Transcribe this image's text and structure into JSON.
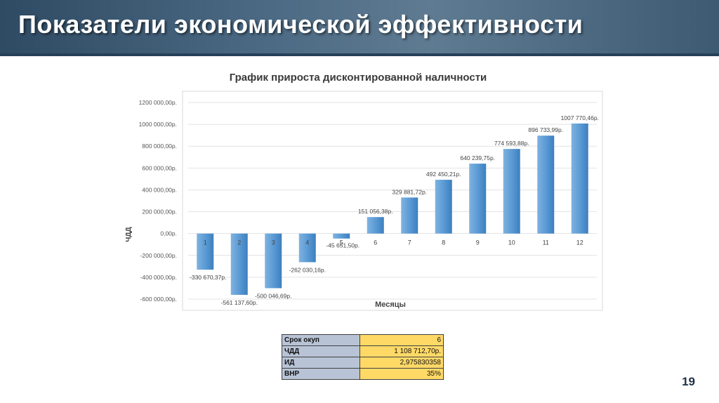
{
  "header": {
    "title": "Показатели экономической эффективности"
  },
  "chart_data": {
    "type": "bar",
    "title": "График прироста дисконтированной наличности",
    "xlabel": "Месяцы",
    "ylabel": "ЧДД",
    "categories": [
      "1",
      "2",
      "3",
      "4",
      "5",
      "6",
      "7",
      "8",
      "9",
      "10",
      "11",
      "12"
    ],
    "values": [
      -330670.37,
      -561137.6,
      -500046.69,
      -262030.16,
      -45651.5,
      151056.38,
      329881.72,
      492450.21,
      640239.75,
      774593.88,
      896733.99,
      1007770.46
    ],
    "value_labels": [
      "-330 670,37р.",
      "-561 137,60р.",
      "-500 046,69р.",
      "-262 030,16р.",
      "-45 651,50р.",
      "151 056,38р.",
      "329 881,72р.",
      "492 450,21р.",
      "640 239,75р.",
      "774 593,88р.",
      "896 733,99р.",
      "1007 770,46р."
    ],
    "yticks": [
      -600000,
      -400000,
      -200000,
      0,
      200000,
      400000,
      600000,
      800000,
      1000000,
      1200000
    ],
    "ytick_labels": [
      "-600 000,00р.",
      "-400 000,00р.",
      "-200 000,00р.",
      "0,00р.",
      "200 000,00р.",
      "400 000,00р.",
      "600 000,00р.",
      "800 000,00р.",
      "1000 000,00р.",
      "1200 000,00р."
    ],
    "ylim": [
      -600000,
      1200000
    ],
    "grid": true,
    "legend": "none",
    "bar_color": "#5b9bd5"
  },
  "summary_table": [
    {
      "label": "Срок окуп",
      "value": "6"
    },
    {
      "label": "ЧДД",
      "value": "1 108 712,70р."
    },
    {
      "label": "ИД",
      "value": "2,975830358"
    },
    {
      "label": "ВНР",
      "value": "35%"
    }
  ],
  "page_number": "19"
}
